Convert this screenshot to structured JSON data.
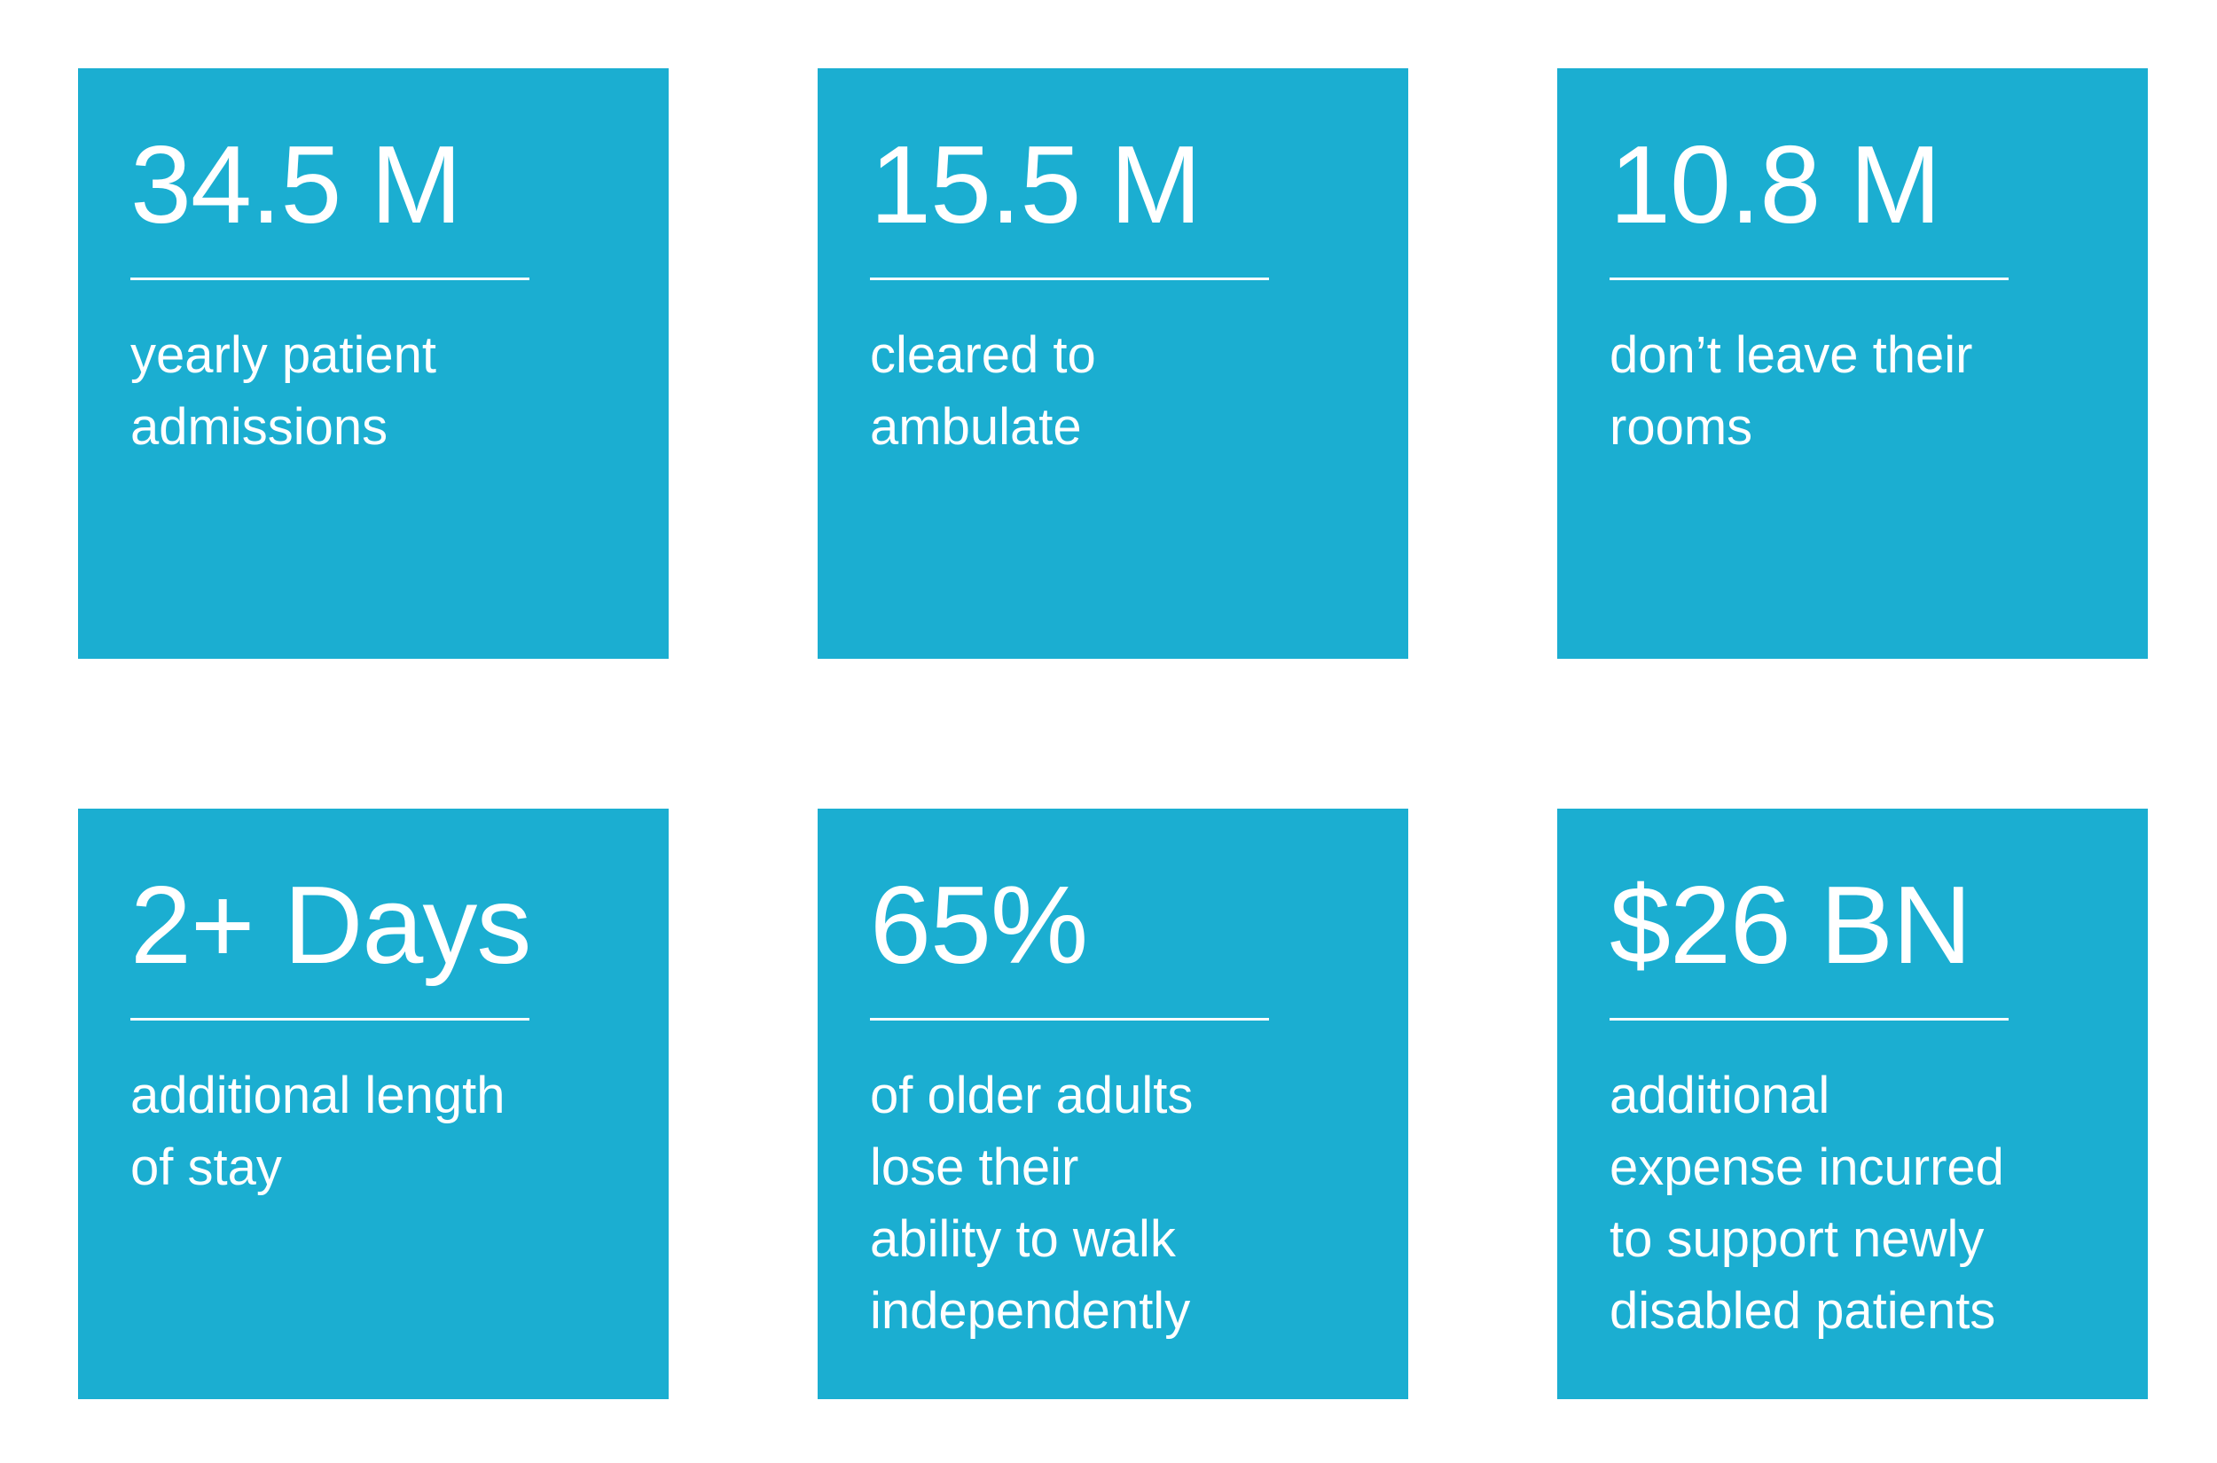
{
  "stats": [
    {
      "value": "34.5 M",
      "description": "yearly patient\nadmissions"
    },
    {
      "value": "15.5 M",
      "description": "cleared to\nambulate"
    },
    {
      "value": "10.8 M",
      "description": "don’t leave their\nrooms"
    },
    {
      "value": "2+ Days",
      "description": "additional length\nof stay"
    },
    {
      "value": "65%",
      "description": "of older adults\nlose their\nability to walk\nindependently"
    },
    {
      "value": "$26 BN",
      "description": "additional\nexpense incurred\nto support newly\ndisabled patients"
    }
  ],
  "colors": {
    "card_background": "#1baed1",
    "text": "#ffffff",
    "page_background": "#ffffff"
  }
}
